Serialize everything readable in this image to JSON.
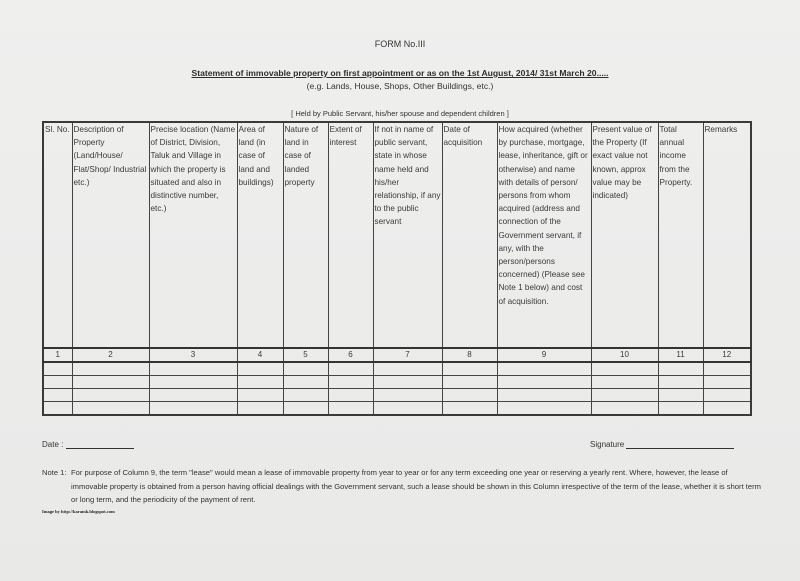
{
  "form_no": "FORM No.III",
  "title": "Statement of immovable property on first appointment or as on the 1st August, 2014/ 31st March 20.....",
  "subtitle": "(e.g. Lands, House, Shops, Other Buildings, etc.)",
  "held_by": "[ Held by Public Servant, his/her spouse and dependent children ]",
  "table": {
    "headers": [
      "Sl. No.",
      "Description of Property (Land/House/ Flat/Shop/ Industrial etc.)",
      "Precise location (Name of District, Division, Taluk and Village in which the property is situated and also in distinctive number, etc.)",
      "Area of land (in case of land and buildings)",
      "Nature of land in case of landed property",
      "Extent of interest",
      "If not in name of public servant, state in whose name held and his/her relationship, if any to the public servant",
      "Date of acquisition",
      "How acquired (whether by purchase, mortgage, lease, inheritance, gift or otherwise) and name with details of person/ persons from whom acquired (address and connection of the Government servant, if any, with the person/persons concerned) (Please see Note 1 below) and cost of acquisition.",
      "Present value of the Property (If exact value not known, approx value may be indicated)",
      "Total annual income from the Property.",
      "Remarks"
    ],
    "column_numbers": [
      "1",
      "2",
      "3",
      "4",
      "5",
      "6",
      "7",
      "8",
      "9",
      "10",
      "11",
      "12"
    ]
  },
  "date_label": "Date :",
  "signature_label": "Signature",
  "note_label": "Note 1:",
  "note_text": "For purpose of Column 9, the term \"lease\" would mean a lease of immovable property from year to year or for any term exceeding one year or reserving a yearly rent. Where, however, the lease of immovable property is obtained from a person having official dealings with the Government servant, such a lease should be shown in this Column irrespective of the term of the lease, whether it is short term or long term, and the periodicity of the payment of rent.",
  "credit": "Image by http://karamk.blogspot.com"
}
